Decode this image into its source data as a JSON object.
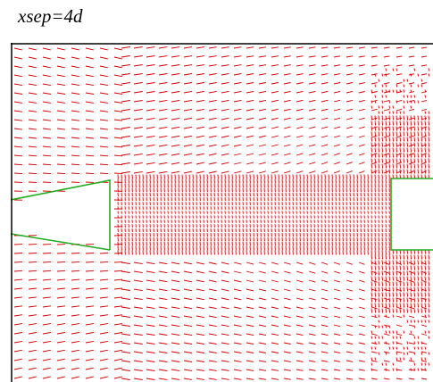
{
  "caption": "xsep=4d",
  "colors": {
    "vectors": "#cc0000",
    "walls": "#22aa22",
    "frame": "#000000",
    "background": "#ffffff"
  }
}
